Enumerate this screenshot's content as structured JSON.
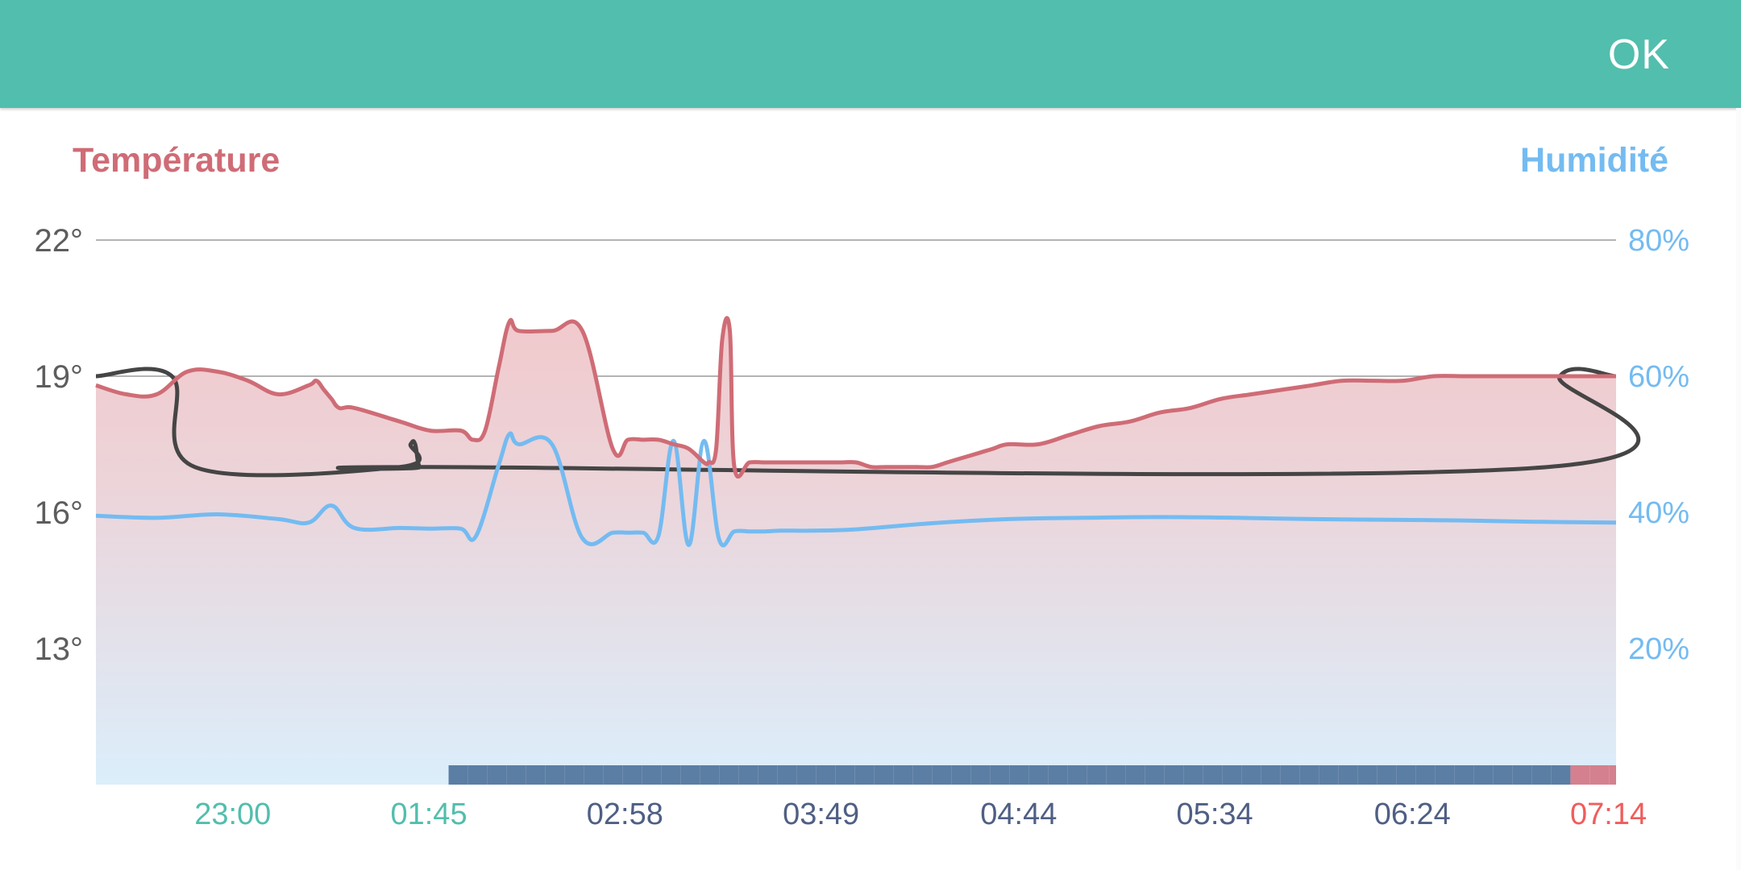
{
  "header": {
    "ok_label": "OK"
  },
  "colors": {
    "header": "#52bead",
    "temperature": "#cf6c76",
    "temperature_fill_top": "#f1c9cc",
    "fill_bottom": "#dbeefb",
    "humidity": "#74bbf1",
    "setpoint": "#454545",
    "grid": "#9a9a9a",
    "tick_left": "#5d5d5d",
    "time_past": "#52bead",
    "time_normal": "#4f5f84",
    "time_current": "#ef5d5d",
    "bar_blue": "#5b7ea4",
    "bar_pink": "#d4808f"
  },
  "chart_data": {
    "type": "line",
    "left_axis": {
      "title": "Température",
      "ticks": [
        {
          "value": 22,
          "label": "22°"
        },
        {
          "value": 19,
          "label": "19°"
        },
        {
          "value": 16,
          "label": "16°"
        },
        {
          "value": 13,
          "label": "13°"
        }
      ],
      "range": [
        10,
        22
      ]
    },
    "right_axis": {
      "title": "Humidité",
      "ticks": [
        {
          "value": 80,
          "label": "80%"
        },
        {
          "value": 60,
          "label": "60%"
        },
        {
          "value": 40,
          "label": "40%"
        },
        {
          "value": 20,
          "label": "20%"
        }
      ],
      "range": [
        0,
        80
      ]
    },
    "x_ticks": [
      {
        "label": "23:00",
        "pos": 0.09,
        "state": "past"
      },
      {
        "label": "01:45",
        "pos": 0.219,
        "state": "past"
      },
      {
        "label": "02:58",
        "pos": 0.348,
        "state": "normal"
      },
      {
        "label": "03:49",
        "pos": 0.477,
        "state": "normal"
      },
      {
        "label": "04:44",
        "pos": 0.607,
        "state": "normal"
      },
      {
        "label": "05:34",
        "pos": 0.736,
        "state": "normal"
      },
      {
        "label": "06:24",
        "pos": 0.866,
        "state": "normal"
      },
      {
        "label": "07:14",
        "pos": 0.995,
        "state": "current"
      }
    ],
    "grid": true,
    "series": [
      {
        "key": "temperature",
        "axis": "left",
        "x": [
          0,
          0.02,
          0.04,
          0.06,
          0.08,
          0.1,
          0.12,
          0.14,
          0.145,
          0.15,
          0.155,
          0.16,
          0.17,
          0.2,
          0.22,
          0.24,
          0.248,
          0.256,
          0.265,
          0.272,
          0.278,
          0.3,
          0.32,
          0.34,
          0.35,
          0.36,
          0.37,
          0.38,
          0.39,
          0.4,
          0.403,
          0.408,
          0.412,
          0.417,
          0.42,
          0.43,
          0.44,
          0.45,
          0.46,
          0.47,
          0.48,
          0.49,
          0.5,
          0.51,
          0.52,
          0.53,
          0.54,
          0.55,
          0.56,
          0.57,
          0.58,
          0.59,
          0.6,
          0.62,
          0.64,
          0.66,
          0.68,
          0.7,
          0.72,
          0.74,
          0.76,
          0.78,
          0.8,
          0.82,
          0.84,
          0.86,
          0.88,
          0.9,
          0.92,
          0.94,
          0.96,
          0.98,
          1.0
        ],
        "y": [
          18.8,
          18.6,
          18.6,
          19.1,
          19.1,
          18.9,
          18.6,
          18.8,
          18.9,
          18.7,
          18.5,
          18.3,
          18.3,
          18.0,
          17.8,
          17.8,
          17.6,
          17.8,
          19.2,
          20.2,
          20.0,
          20.0,
          20.0,
          17.4,
          17.6,
          17.6,
          17.6,
          17.5,
          17.4,
          17.1,
          17.1,
          17.4,
          19.8,
          20.0,
          17.0,
          17.1,
          17.1,
          17.1,
          17.1,
          17.1,
          17.1,
          17.1,
          17.1,
          17.0,
          17.0,
          17.0,
          17.0,
          17.0,
          17.1,
          17.2,
          17.3,
          17.4,
          17.5,
          17.5,
          17.7,
          17.9,
          18.0,
          18.2,
          18.3,
          18.5,
          18.6,
          18.7,
          18.8,
          18.9,
          18.9,
          18.9,
          19.0,
          19.0,
          19.0,
          19.0,
          19.0,
          19.0,
          19.0
        ]
      },
      {
        "key": "humidity",
        "axis": "right",
        "x": [
          0,
          0.04,
          0.08,
          0.12,
          0.14,
          0.155,
          0.17,
          0.2,
          0.22,
          0.24,
          0.25,
          0.265,
          0.272,
          0.278,
          0.3,
          0.32,
          0.34,
          0.35,
          0.36,
          0.37,
          0.38,
          0.39,
          0.4,
          0.41,
          0.42,
          0.43,
          0.44,
          0.45,
          0.46,
          0.47,
          0.5,
          0.55,
          0.6,
          0.65,
          0.7,
          0.75,
          0.8,
          0.85,
          0.9,
          0.95,
          1.0
        ],
        "y": [
          39.5,
          39.2,
          39.7,
          39.0,
          38.5,
          41.0,
          37.7,
          37.7,
          37.6,
          37.6,
          36.5,
          47.0,
          51.5,
          50.0,
          50.0,
          36.2,
          37.0,
          37.0,
          37.0,
          36.5,
          50.5,
          35.2,
          50.5,
          36.0,
          37.2,
          37.2,
          37.2,
          37.3,
          37.3,
          37.3,
          37.5,
          38.4,
          39.0,
          39.2,
          39.3,
          39.2,
          39.0,
          38.9,
          38.8,
          38.6,
          38.5
        ]
      },
      {
        "key": "setpoint",
        "axis": "left",
        "x": [
          0,
          0.05,
          0.065,
          0.2,
          0.207,
          0.21,
          0.213,
          0.22,
          0.955,
          0.963,
          1.0
        ],
        "y": [
          19.0,
          19.0,
          17.0,
          17.0,
          17.5,
          17.5,
          17.0,
          17.0,
          17.0,
          19.0,
          19.0
        ]
      }
    ],
    "bottom_bar": [
      {
        "from": 0.232,
        "to": 0.97,
        "color": "#5b7ea4"
      },
      {
        "from": 0.97,
        "to": 1.0,
        "color": "#d4808f"
      }
    ]
  }
}
